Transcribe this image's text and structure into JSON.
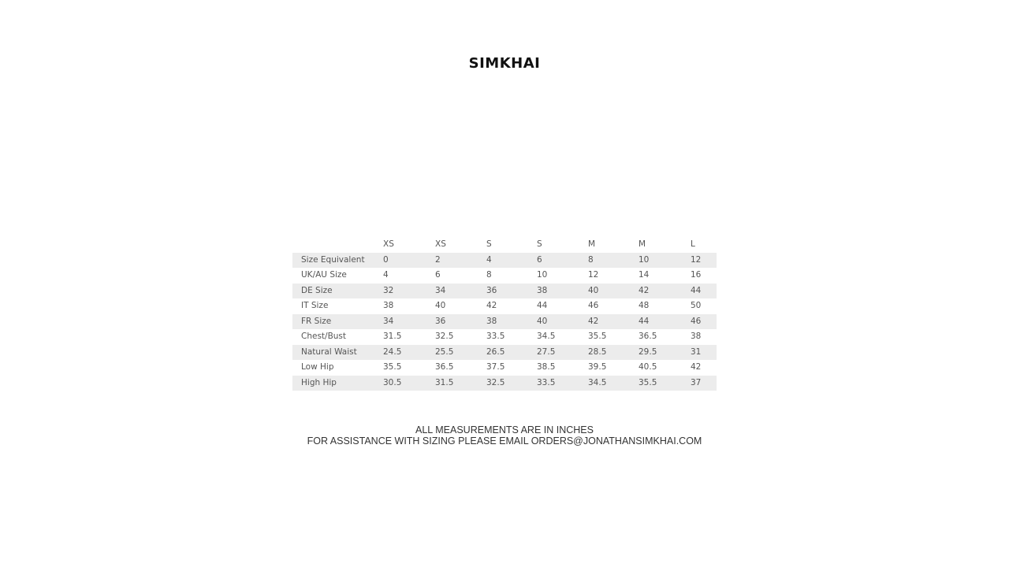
{
  "brand": "SIMKHAI",
  "size_chart": {
    "headers": [
      "",
      "XS",
      "XS",
      "S",
      "S",
      "M",
      "M",
      "L"
    ],
    "rows": [
      {
        "label": "Size Equivalent",
        "values": [
          "0",
          "2",
          "4",
          "6",
          "8",
          "10",
          "12"
        ]
      },
      {
        "label": "UK/AU Size",
        "values": [
          "4",
          "6",
          "8",
          "10",
          "12",
          "14",
          "16"
        ]
      },
      {
        "label": "DE Size",
        "values": [
          "32",
          "34",
          "36",
          "38",
          "40",
          "42",
          "44"
        ]
      },
      {
        "label": "IT Size",
        "values": [
          "38",
          "40",
          "42",
          "44",
          "46",
          "48",
          "50"
        ]
      },
      {
        "label": "FR Size",
        "values": [
          "34",
          "36",
          "38",
          "40",
          "42",
          "44",
          "46"
        ]
      },
      {
        "label": "Chest/Bust",
        "values": [
          "31.5",
          "32.5",
          "33.5",
          "34.5",
          "35.5",
          "36.5",
          "38"
        ]
      },
      {
        "label": "Natural Waist",
        "values": [
          "24.5",
          "25.5",
          "26.5",
          "27.5",
          "28.5",
          "29.5",
          "31"
        ]
      },
      {
        "label": "Low Hip",
        "values": [
          "35.5",
          "36.5",
          "37.5",
          "38.5",
          "39.5",
          "40.5",
          "42"
        ]
      },
      {
        "label": "High Hip",
        "values": [
          "30.5",
          "31.5",
          "32.5",
          "33.5",
          "34.5",
          "35.5",
          "37"
        ]
      }
    ]
  },
  "notes": {
    "line1": "ALL MEASUREMENTS ARE IN INCHES",
    "line2": "FOR ASSISTANCE WITH SIZING PLEASE EMAIL ORDERS@JONATHANSIMKHAI.COM"
  }
}
